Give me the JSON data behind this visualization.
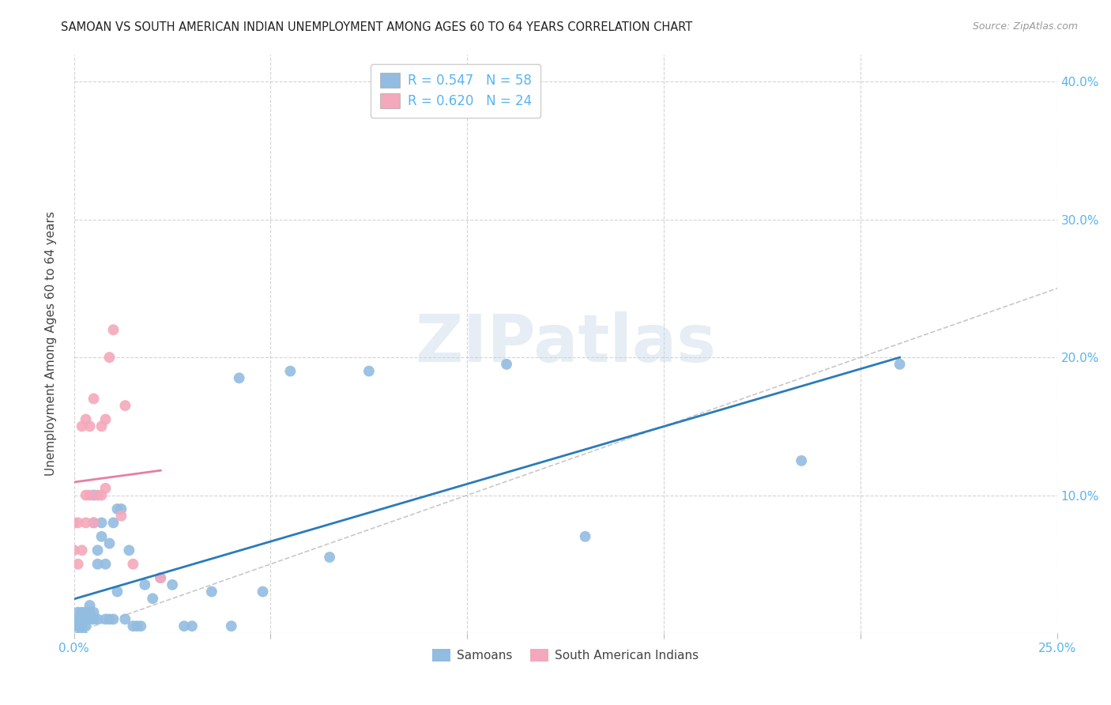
{
  "title": "SAMOAN VS SOUTH AMERICAN INDIAN UNEMPLOYMENT AMONG AGES 60 TO 64 YEARS CORRELATION CHART",
  "source": "Source: ZipAtlas.com",
  "ylabel": "Unemployment Among Ages 60 to 64 years",
  "xlim": [
    0.0,
    0.25
  ],
  "ylim": [
    0.0,
    0.42
  ],
  "watermark": "ZIPatlas",
  "legend_R_samoan": "0.547",
  "legend_N_samoan": "58",
  "legend_R_sai": "0.620",
  "legend_N_sai": "24",
  "samoan_color": "#92bce0",
  "sai_color": "#f4a8bb",
  "samoan_line_color": "#2b7bba",
  "sai_line_color": "#e87ea0",
  "diagonal_color": "#c8c8c8",
  "background_color": "#ffffff",
  "grid_color": "#d0d0d0",
  "tick_color": "#5ab4f0",
  "label_color": "#444444",
  "source_color": "#999999",
  "samoan_x": [
    0.0,
    0.0,
    0.001,
    0.001,
    0.001,
    0.002,
    0.002,
    0.002,
    0.002,
    0.003,
    0.003,
    0.003,
    0.003,
    0.003,
    0.004,
    0.004,
    0.004,
    0.004,
    0.005,
    0.005,
    0.005,
    0.005,
    0.006,
    0.006,
    0.006,
    0.007,
    0.007,
    0.008,
    0.008,
    0.009,
    0.009,
    0.01,
    0.01,
    0.011,
    0.011,
    0.012,
    0.013,
    0.014,
    0.015,
    0.016,
    0.017,
    0.018,
    0.02,
    0.022,
    0.025,
    0.028,
    0.03,
    0.035,
    0.04,
    0.042,
    0.048,
    0.055,
    0.065,
    0.075,
    0.11,
    0.13,
    0.185,
    0.21
  ],
  "samoan_y": [
    0.005,
    0.01,
    0.005,
    0.01,
    0.015,
    0.0,
    0.005,
    0.01,
    0.015,
    0.005,
    0.01,
    0.015,
    0.01,
    0.015,
    0.01,
    0.015,
    0.01,
    0.02,
    0.08,
    0.1,
    0.01,
    0.015,
    0.05,
    0.06,
    0.01,
    0.07,
    0.08,
    0.01,
    0.05,
    0.01,
    0.065,
    0.08,
    0.01,
    0.09,
    0.03,
    0.09,
    0.01,
    0.06,
    0.005,
    0.005,
    0.005,
    0.035,
    0.025,
    0.04,
    0.035,
    0.005,
    0.005,
    0.03,
    0.005,
    0.185,
    0.03,
    0.19,
    0.055,
    0.19,
    0.195,
    0.07,
    0.125,
    0.195
  ],
  "sai_x": [
    0.0,
    0.0,
    0.001,
    0.001,
    0.002,
    0.002,
    0.003,
    0.003,
    0.003,
    0.004,
    0.004,
    0.005,
    0.005,
    0.006,
    0.007,
    0.007,
    0.008,
    0.008,
    0.009,
    0.01,
    0.012,
    0.013,
    0.015,
    0.022
  ],
  "sai_y": [
    0.06,
    0.08,
    0.05,
    0.08,
    0.06,
    0.15,
    0.08,
    0.1,
    0.155,
    0.1,
    0.15,
    0.08,
    0.17,
    0.1,
    0.1,
    0.15,
    0.105,
    0.155,
    0.2,
    0.22,
    0.085,
    0.165,
    0.05,
    0.04
  ]
}
